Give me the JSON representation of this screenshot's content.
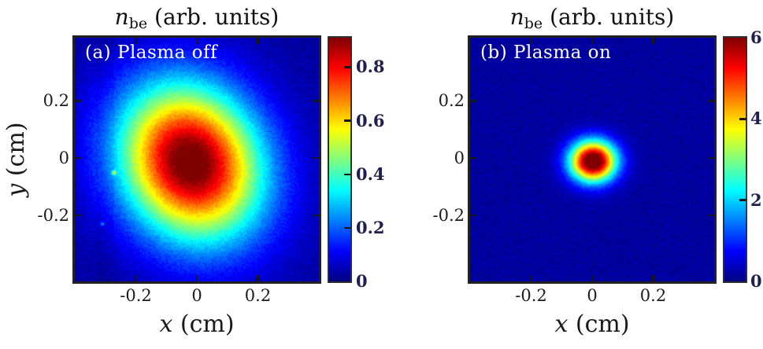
{
  "figure": {
    "background": "#ffffff",
    "frame_color": "#212121",
    "tick_mark_color": "#161616",
    "tick_label_color": "#1c1c1c",
    "axis_label_color": "#1a1a1a",
    "colorbar_label_color": "#20204e",
    "panel_label_color": "#ffffff",
    "colormap_low_color": "#00008f",
    "colormap_high_color": "#800000"
  },
  "chart_data": [
    {
      "type": "heatmap",
      "panel_label": "(a) Plasma off",
      "title": {
        "var": "n",
        "sub": "be",
        "rest": " (arb. units)"
      },
      "xlabel": {
        "var": "x",
        "rest": " (cm)"
      },
      "ylabel": {
        "var": "y",
        "rest": " (cm)"
      },
      "xlim": [
        -0.4,
        0.4
      ],
      "ylim": [
        -0.43,
        0.42
      ],
      "xticks": [
        -0.2,
        0,
        0.2
      ],
      "yticks": [
        0.2,
        0,
        -0.2
      ],
      "colormap": "jet",
      "grid": false,
      "colorbar": {
        "position": "right",
        "vmin": 0,
        "vmax": 0.91,
        "ticks": [
          0.8,
          0.6,
          0.4,
          0.2,
          0
        ]
      },
      "beam": {
        "cx": -0.02,
        "cy": -0.015,
        "sigma_x": 0.155,
        "sigma_y": 0.19,
        "tilt_deg": 22,
        "peak": 0.93
      },
      "background_level": 0.032,
      "noise_level": 0.024,
      "artifacts": {
        "dark_stripe": {
          "x0": -0.33,
          "x1": -0.27,
          "depth": 0.012
        },
        "specks": [
          {
            "x": -0.271,
            "y": -0.051,
            "value": 0.3
          },
          {
            "x": -0.31,
            "y": -0.23,
            "value": 0.15
          }
        ]
      }
    },
    {
      "type": "heatmap",
      "panel_label": "(b) Plasma on",
      "title": {
        "var": "n",
        "sub": "be",
        "rest": " (arb. units)"
      },
      "xlabel": {
        "var": "x",
        "rest": " (cm)"
      },
      "ylabel": null,
      "xlim": [
        -0.4,
        0.4
      ],
      "ylim": [
        -0.43,
        0.42
      ],
      "xticks": [
        -0.2,
        0,
        0.2
      ],
      "yticks": [
        0.2,
        0,
        -0.2
      ],
      "colormap": "jet",
      "grid": false,
      "colorbar": {
        "position": "right",
        "vmin": 0,
        "vmax": 6,
        "ticks": [
          6,
          4,
          2,
          0
        ]
      },
      "beam": {
        "cx": 0.003,
        "cy": -0.011,
        "sigma_x": 0.052,
        "sigma_y": 0.049,
        "tilt_deg": 0,
        "peak": 6.6
      },
      "background_level": 0.03,
      "noise_level": 0.02,
      "artifacts": {
        "dark_stripe": null,
        "specks": []
      }
    }
  ]
}
